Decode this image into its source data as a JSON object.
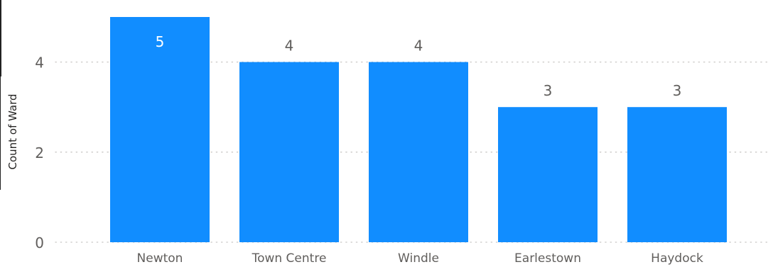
{
  "chart_data": {
    "type": "bar",
    "title": "",
    "xlabel": "",
    "ylabel": "Count of Ward",
    "categories": [
      "Newton",
      "Town Centre",
      "Windle",
      "Earlestown",
      "Haydock"
    ],
    "values": [
      5,
      4,
      4,
      3,
      3
    ],
    "data_labels": [
      "5",
      "4",
      "4",
      "3",
      "3"
    ],
    "yticks": [
      0,
      2,
      4
    ],
    "ytick_labels": [
      "0",
      "2",
      "4"
    ],
    "ylim": [
      0,
      5
    ],
    "grid": "horizontal dotted",
    "legend": "none",
    "colors": {
      "bar": "#118DFF",
      "grid": "#C8C6C4",
      "label_inside": "#FFFFFF",
      "label_outside": "#605E5C",
      "tick_text": "#605E5C",
      "axis_title": "#252423"
    }
  }
}
